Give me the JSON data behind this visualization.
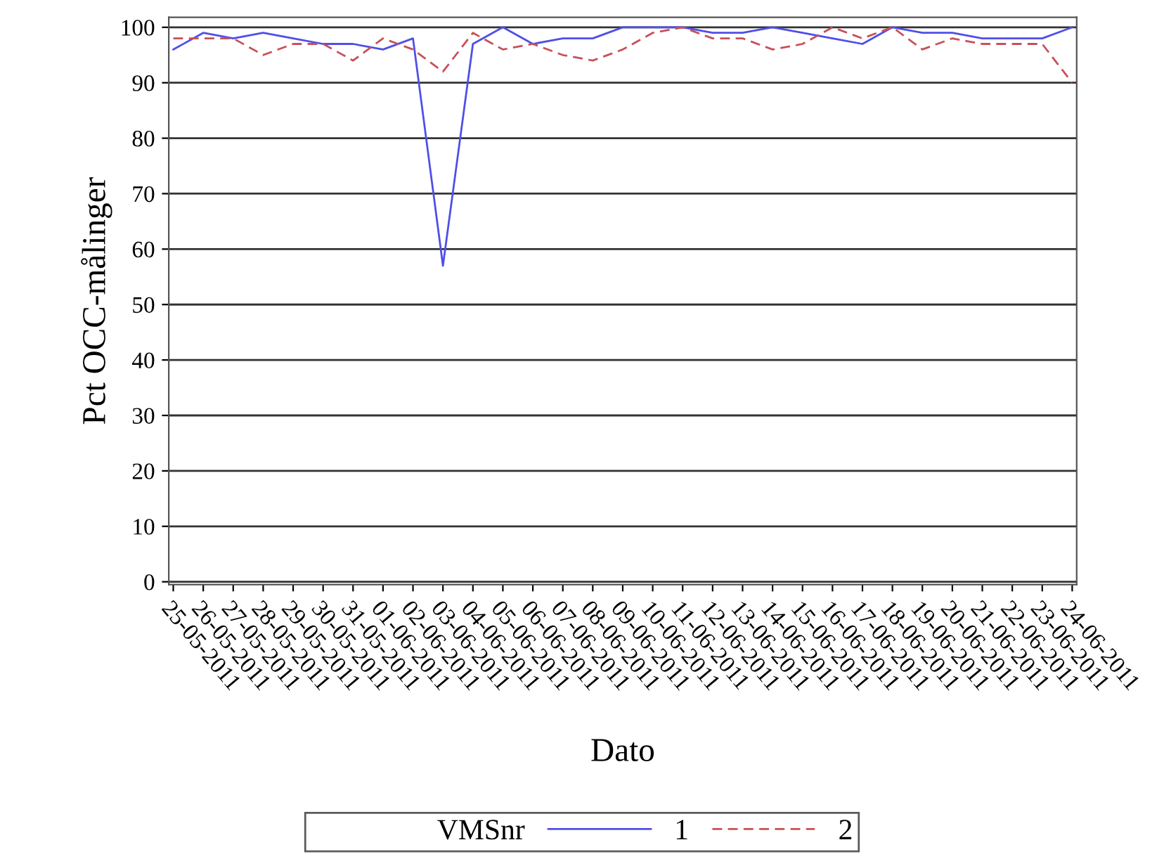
{
  "chart_data": {
    "type": "line",
    "xlabel": "Dato",
    "ylabel": "Pct OCC-målinger",
    "legend_title": "VMSnr",
    "categories": [
      "25-05-2011",
      "26-05-2011",
      "27-05-2011",
      "28-05-2011",
      "29-05-2011",
      "30-05-2011",
      "31-05-2011",
      "01-06-2011",
      "02-06-2011",
      "03-06-2011",
      "04-06-2011",
      "05-06-2011",
      "06-06-2011",
      "07-06-2011",
      "08-06-2011",
      "09-06-2011",
      "10-06-2011",
      "11-06-2011",
      "12-06-2011",
      "13-06-2011",
      "14-06-2011",
      "15-06-2011",
      "16-06-2011",
      "17-06-2011",
      "18-06-2011",
      "19-06-2011",
      "20-06-2011",
      "21-06-2011",
      "22-06-2011",
      "23-06-2011",
      "24-06-2011"
    ],
    "series": [
      {
        "name": "1",
        "color": "#4f4fe8",
        "line_style": "solid",
        "values": [
          96,
          99,
          98,
          99,
          98,
          97,
          97,
          96,
          98,
          57,
          97,
          100,
          97,
          98,
          98,
          100,
          100,
          100,
          99,
          99,
          100,
          99,
          98,
          97,
          100,
          99,
          99,
          98,
          98,
          98,
          100
        ]
      },
      {
        "name": "2",
        "color": "#c8505a",
        "line_style": "dashed",
        "values": [
          98,
          98,
          98,
          95,
          97,
          97,
          94,
          98,
          96,
          92,
          99,
          96,
          97,
          95,
          94,
          96,
          99,
          100,
          98,
          98,
          96,
          97,
          100,
          98,
          100,
          96,
          98,
          97,
          97,
          97,
          90
        ]
      }
    ],
    "ylim": [
      -0.5,
      101.8
    ],
    "yticks": [
      0,
      10,
      20,
      30,
      40,
      50,
      60,
      70,
      80,
      90,
      100
    ],
    "grid": "y",
    "legend": "bottom",
    "marker": "none"
  }
}
